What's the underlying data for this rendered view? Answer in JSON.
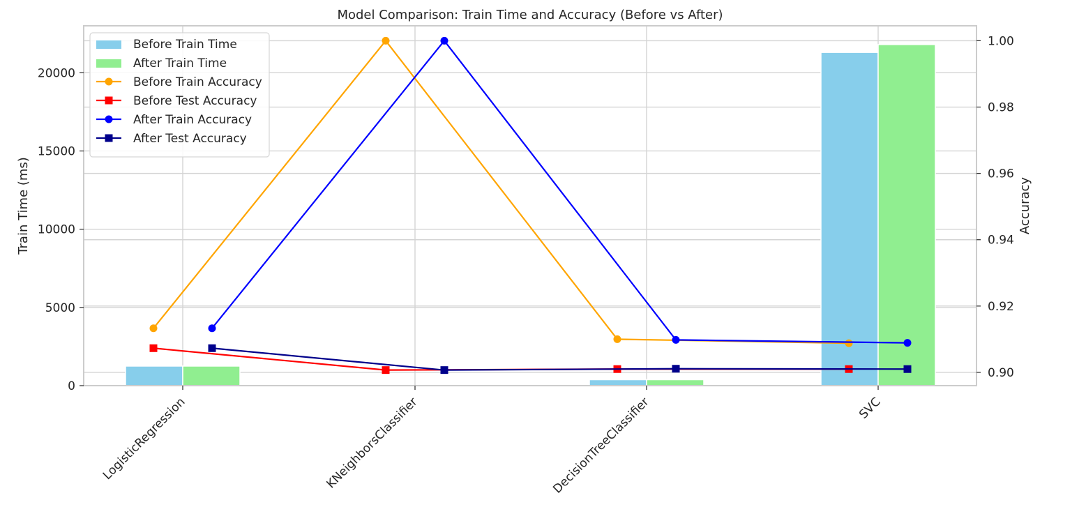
{
  "chart_data": {
    "type": "bar",
    "title": "Model Comparison: Train Time and Accuracy (Before vs After)",
    "categories": [
      "LogisticRegression",
      "KNeighborsClassifier",
      "DecisionTreeClassifier",
      "SVC"
    ],
    "left_axis": {
      "label": "Train Time (ms)",
      "ylim": [
        0,
        23000
      ],
      "ticks": [
        0,
        5000,
        10000,
        15000,
        20000
      ]
    },
    "right_axis": {
      "label": "Accuracy",
      "ylim": [
        0.896,
        1.0045
      ],
      "ticks": [
        0.9,
        0.92,
        0.94,
        0.96,
        0.98,
        1.0
      ],
      "tick_labels": [
        "0.90",
        "0.92",
        "0.94",
        "0.96",
        "0.98",
        "1.00"
      ]
    },
    "bar_series": [
      {
        "name": "Before Train Time",
        "color": "#87ceeb",
        "values": [
          1250,
          0,
          380,
          21300
        ]
      },
      {
        "name": "After Train Time",
        "color": "#90ee90",
        "values": [
          1250,
          0,
          380,
          21800
        ]
      }
    ],
    "line_series": [
      {
        "name": "Before Train Accuracy",
        "color": "#ffa500",
        "marker": "circle",
        "offset": "before",
        "values": [
          0.9133,
          1.0,
          0.91,
          0.9088
        ]
      },
      {
        "name": "Before Test Accuracy",
        "color": "#ff0000",
        "marker": "square",
        "offset": "before",
        "values": [
          0.9073,
          0.9007,
          0.901,
          0.901
        ]
      },
      {
        "name": "After Train Accuracy",
        "color": "#0000ff",
        "marker": "circle",
        "offset": "after",
        "values": [
          0.9133,
          1.0,
          0.9098,
          0.9089
        ]
      },
      {
        "name": "After Test Accuracy",
        "color": "#00008b",
        "marker": "square",
        "offset": "after",
        "values": [
          0.9073,
          0.9007,
          0.9011,
          0.901
        ]
      }
    ],
    "grid": true,
    "legend_position": "top-left"
  }
}
